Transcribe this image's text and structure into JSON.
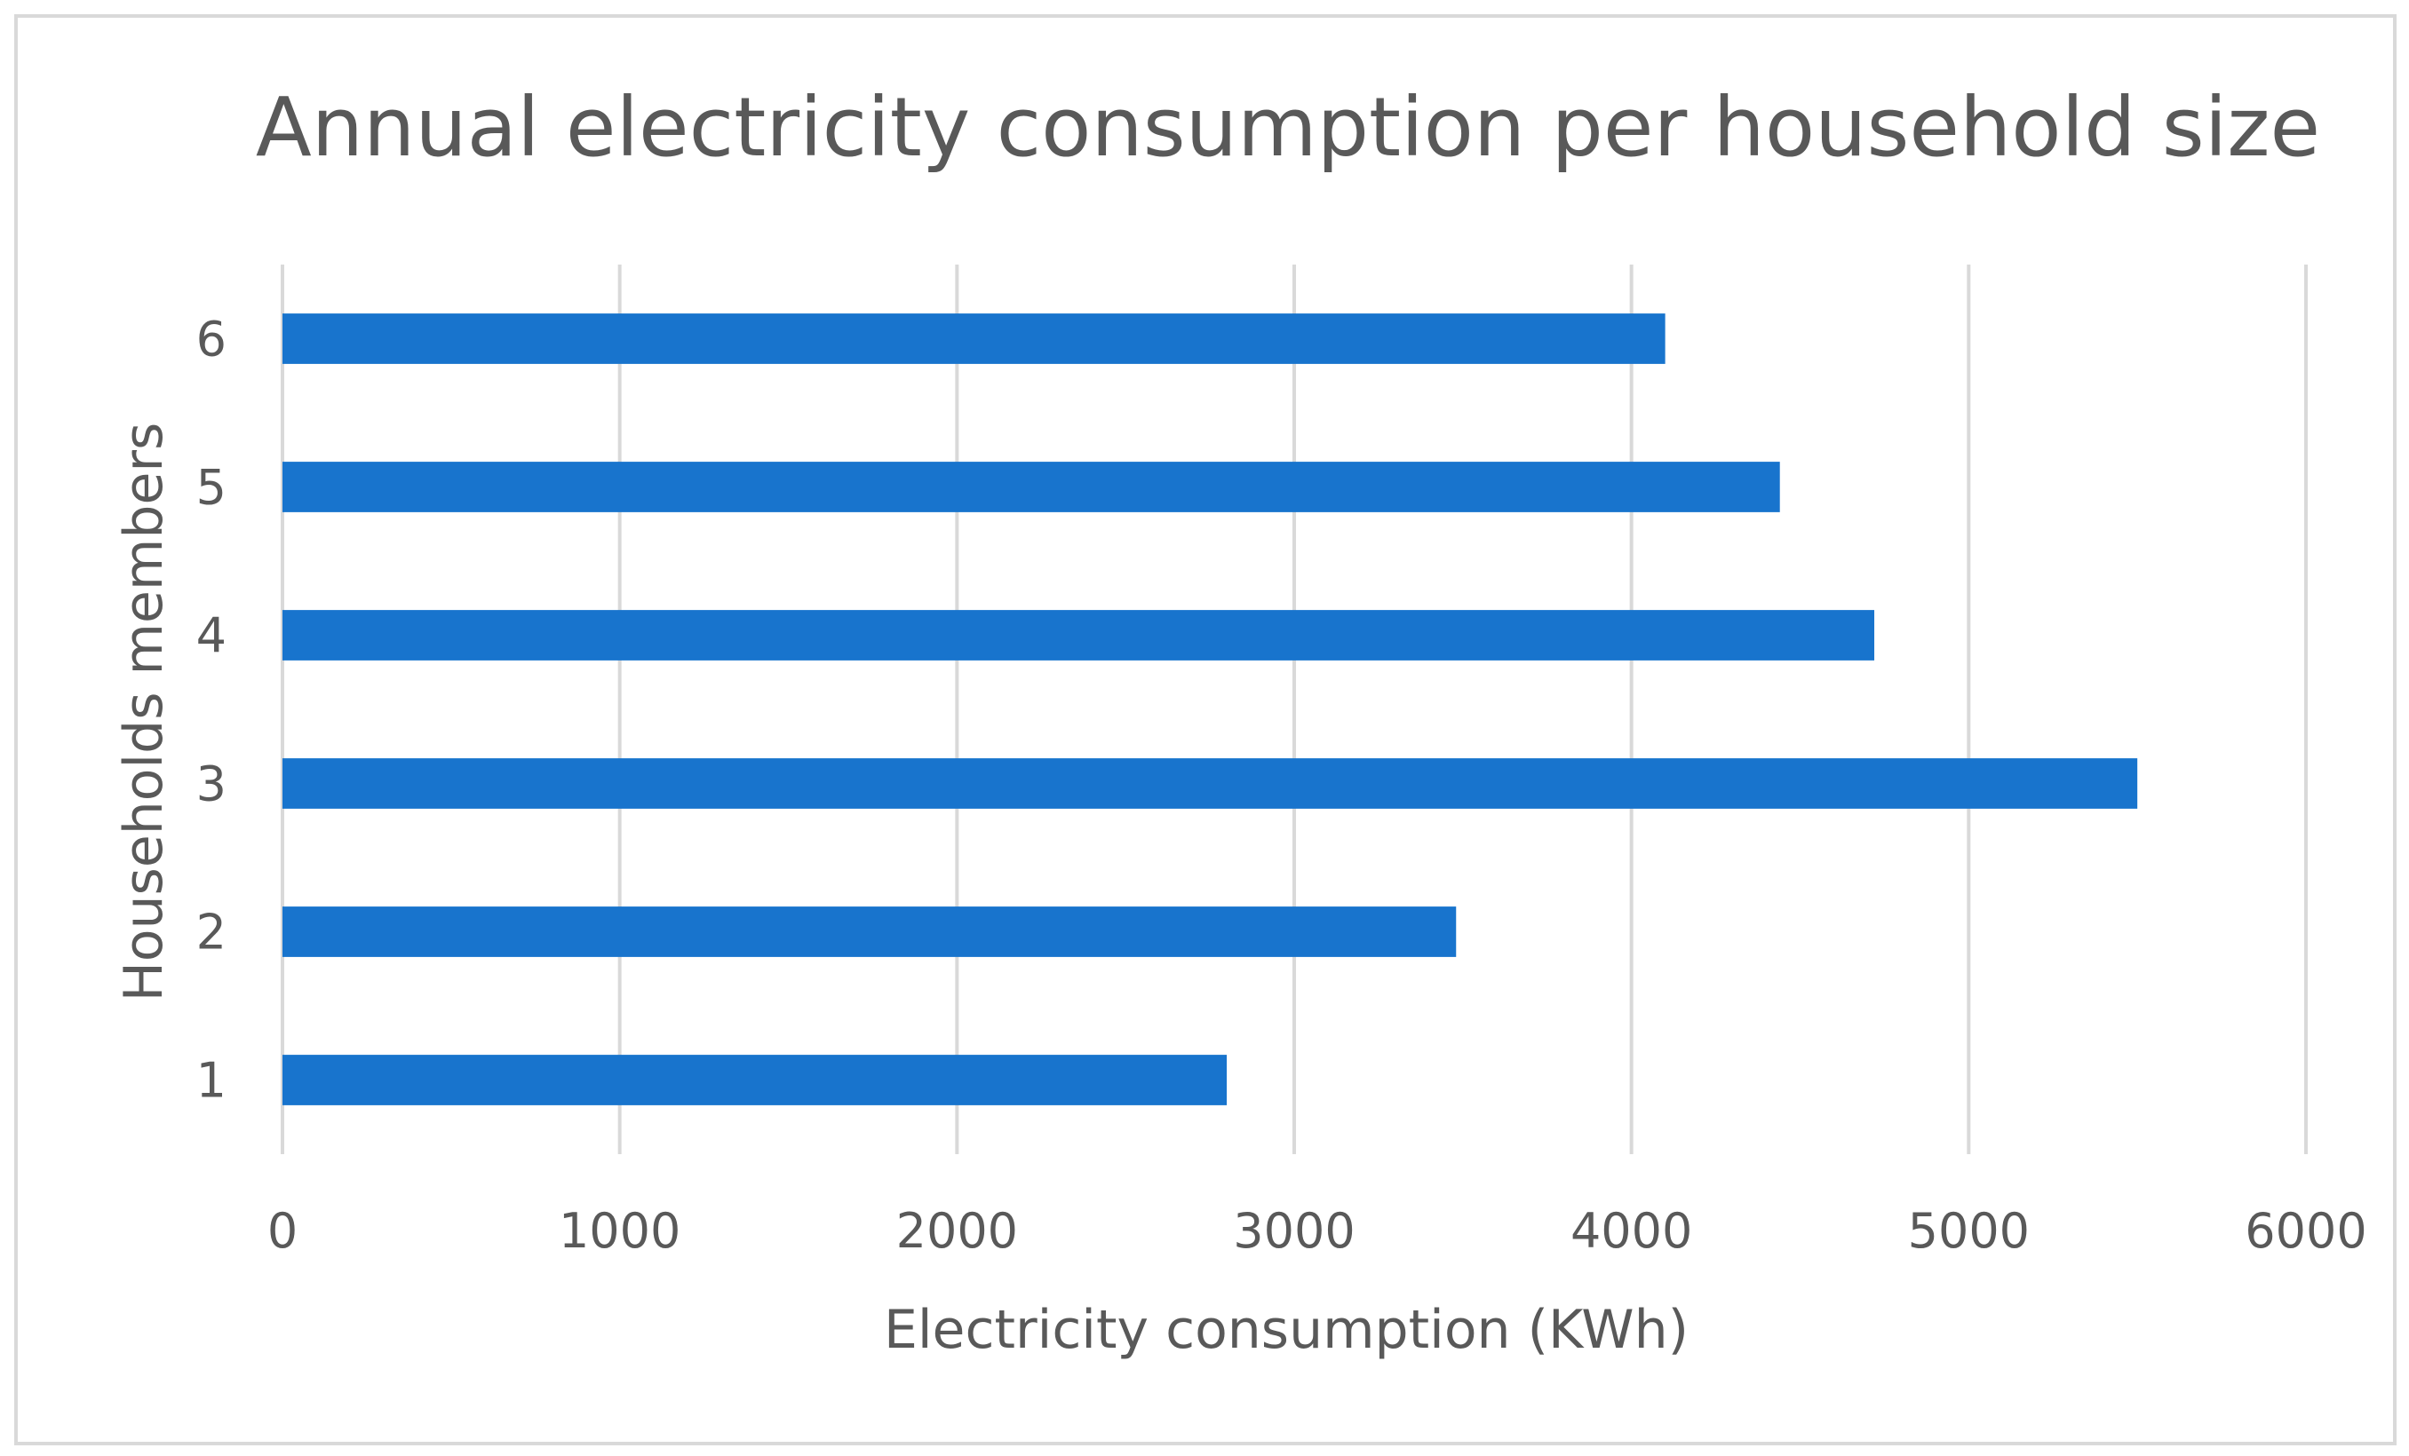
{
  "chart_data": {
    "type": "bar",
    "orientation": "horizontal",
    "title": "Annual electricity consumption per household size",
    "xlabel": "Electricity consumption (KWh)",
    "ylabel": "Households members",
    "categories": [
      "1",
      "2",
      "3",
      "4",
      "5",
      "6"
    ],
    "values": [
      2800,
      3480,
      5500,
      4720,
      4440,
      4100
    ],
    "xlim": [
      0,
      6000
    ],
    "xticks": [
      "0",
      "1000",
      "2000",
      "3000",
      "4000",
      "5000",
      "6000"
    ],
    "grid": true,
    "legend": "none",
    "bar_color": "#1874cd"
  }
}
